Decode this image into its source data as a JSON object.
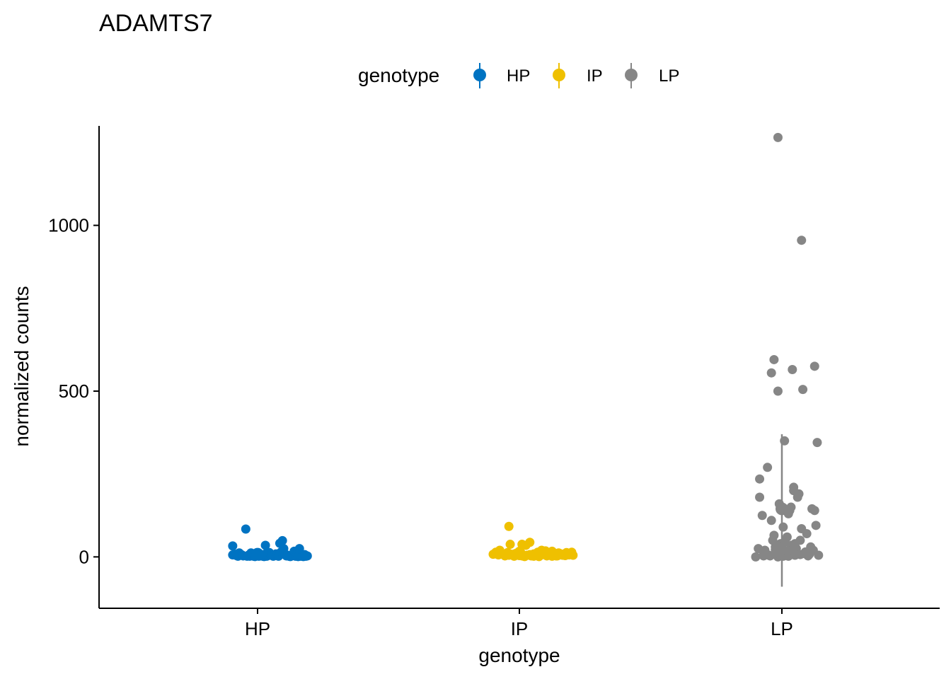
{
  "chart_data": {
    "type": "scatter",
    "title": "ADAMTS7",
    "xlabel": "genotype",
    "ylabel": "normalized counts",
    "categories": [
      "HP",
      "IP",
      "LP"
    ],
    "ylim": [
      -155,
      1300
    ],
    "yticks": [
      0,
      500,
      1000
    ],
    "grid": false,
    "legend": {
      "title": "genotype",
      "position": "top",
      "entries": [
        "HP",
        "IP",
        "LP"
      ]
    },
    "colors": {
      "HP": "#0073C2",
      "IP": "#EFC000",
      "LP": "#868686"
    },
    "series": [
      {
        "name": "HP",
        "summary": {
          "mean": 8,
          "lower": 0,
          "upper": 18
        },
        "points": [
          [
            -0.19,
            33
          ],
          [
            -0.19,
            6
          ],
          [
            -0.17,
            8
          ],
          [
            -0.16,
            4
          ],
          [
            -0.15,
            2
          ],
          [
            -0.14,
            12
          ],
          [
            -0.12,
            6
          ],
          [
            -0.11,
            3
          ],
          [
            -0.09,
            84
          ],
          [
            -0.08,
            2
          ],
          [
            -0.07,
            5
          ],
          [
            -0.06,
            2
          ],
          [
            -0.05,
            12
          ],
          [
            -0.04,
            6
          ],
          [
            -0.03,
            2
          ],
          [
            -0.02,
            1
          ],
          [
            0.0,
            7
          ],
          [
            0.01,
            2
          ],
          [
            0.02,
            3
          ],
          [
            0.03,
            4
          ],
          [
            0.04,
            2
          ],
          [
            0.05,
            1
          ],
          [
            0.06,
            9
          ],
          [
            0.06,
            35
          ],
          [
            0.07,
            2
          ],
          [
            0.08,
            4
          ],
          [
            0.09,
            13
          ],
          [
            0.1,
            8
          ],
          [
            0.11,
            4
          ],
          [
            0.12,
            2
          ],
          [
            0.13,
            6
          ],
          [
            0.14,
            9
          ],
          [
            0.15,
            7
          ],
          [
            0.16,
            2
          ],
          [
            0.17,
            41
          ],
          [
            0.18,
            15
          ],
          [
            0.19,
            49
          ],
          [
            0.2,
            25
          ],
          [
            0.21,
            8
          ],
          [
            0.22,
            3
          ],
          [
            0.23,
            5
          ],
          [
            0.24,
            2
          ],
          [
            0.25,
            1
          ],
          [
            0.26,
            3
          ],
          [
            0.27,
            4
          ],
          [
            0.28,
            17
          ],
          [
            0.29,
            2
          ],
          [
            0.3,
            9
          ],
          [
            0.31,
            1
          ],
          [
            0.32,
            25
          ],
          [
            0.33,
            2
          ],
          [
            0.34,
            3
          ],
          [
            0.35,
            1
          ],
          [
            0.36,
            7
          ],
          [
            0.37,
            2
          ],
          [
            0.38,
            3
          ]
        ]
      },
      {
        "name": "IP",
        "summary": {
          "mean": 10,
          "lower": 0,
          "upper": 20
        },
        "points": [
          [
            -0.2,
            8
          ],
          [
            -0.18,
            14
          ],
          [
            -0.16,
            6
          ],
          [
            -0.15,
            20
          ],
          [
            -0.13,
            9
          ],
          [
            -0.11,
            3
          ],
          [
            -0.09,
            13
          ],
          [
            -0.08,
            5
          ],
          [
            -0.06,
            8
          ],
          [
            -0.04,
            2
          ],
          [
            -0.03,
            10
          ],
          [
            -0.01,
            6
          ],
          [
            0.0,
            4
          ],
          [
            0.02,
            3
          ],
          [
            0.04,
            1
          ],
          [
            0.06,
            5
          ],
          [
            0.08,
            7
          ],
          [
            0.09,
            3
          ],
          [
            0.11,
            2
          ],
          [
            0.13,
            4
          ],
          [
            0.15,
            1
          ],
          [
            0.17,
            6
          ],
          [
            0.19,
            8
          ],
          [
            0.21,
            3
          ],
          [
            0.23,
            5
          ],
          [
            0.25,
            2
          ],
          [
            0.27,
            4
          ],
          [
            0.29,
            3
          ],
          [
            0.31,
            10
          ],
          [
            0.33,
            5
          ],
          [
            -0.08,
            92
          ],
          [
            -0.07,
            38
          ],
          [
            0.0,
            17
          ],
          [
            0.02,
            38
          ],
          [
            0.05,
            35
          ],
          [
            0.08,
            44
          ],
          [
            0.11,
            9
          ],
          [
            0.14,
            14
          ],
          [
            0.17,
            20
          ],
          [
            0.2,
            18
          ],
          [
            0.22,
            7
          ],
          [
            0.25,
            17
          ],
          [
            0.28,
            3
          ],
          [
            0.3,
            12
          ],
          [
            0.33,
            8
          ],
          [
            0.35,
            4
          ],
          [
            0.36,
            13
          ],
          [
            0.38,
            6
          ],
          [
            0.4,
            14
          ],
          [
            0.41,
            5
          ]
        ]
      },
      {
        "name": "LP",
        "summary": {
          "mean": 145,
          "lower": -90,
          "upper": 370
        },
        "points": [
          [
            -0.2,
            0
          ],
          [
            -0.18,
            25
          ],
          [
            -0.17,
            235
          ],
          [
            -0.17,
            180
          ],
          [
            -0.15,
            125
          ],
          [
            -0.14,
            3
          ],
          [
            -0.13,
            20
          ],
          [
            -0.12,
            10
          ],
          [
            -0.11,
            270
          ],
          [
            -0.1,
            5
          ],
          [
            -0.08,
            555
          ],
          [
            -0.08,
            110
          ],
          [
            -0.07,
            50
          ],
          [
            -0.06,
            65
          ],
          [
            -0.06,
            595
          ],
          [
            -0.05,
            30
          ],
          [
            -0.04,
            15
          ],
          [
            -0.03,
            0
          ],
          [
            -0.03,
            500
          ],
          [
            -0.02,
            160
          ],
          [
            -0.01,
            5
          ],
          [
            -0.01,
            40
          ],
          [
            0.0,
            20
          ],
          [
            0.0,
            30
          ],
          [
            0.01,
            90
          ],
          [
            0.01,
            2
          ],
          [
            0.02,
            350
          ],
          [
            0.02,
            45
          ],
          [
            0.03,
            10
          ],
          [
            0.03,
            5
          ],
          [
            -0.03,
            1265
          ],
          [
            0.04,
            60
          ],
          [
            0.05,
            130
          ],
          [
            0.06,
            140
          ],
          [
            0.07,
            35
          ],
          [
            0.07,
            150
          ],
          [
            0.08,
            8
          ],
          [
            0.08,
            565
          ],
          [
            0.09,
            200
          ],
          [
            0.09,
            210
          ],
          [
            0.1,
            40
          ],
          [
            0.11,
            25
          ],
          [
            0.12,
            180
          ],
          [
            0.13,
            190
          ],
          [
            0.14,
            50
          ],
          [
            0.15,
            955
          ],
          [
            0.15,
            85
          ],
          [
            0.16,
            505
          ],
          [
            0.17,
            10
          ],
          [
            0.18,
            15
          ],
          [
            0.19,
            70
          ],
          [
            0.2,
            3
          ],
          [
            0.21,
            8
          ],
          [
            0.22,
            30
          ],
          [
            0.23,
            145
          ],
          [
            0.24,
            20
          ],
          [
            0.25,
            575
          ],
          [
            0.25,
            140
          ],
          [
            0.26,
            95
          ],
          [
            0.27,
            345
          ],
          [
            0.28,
            5
          ],
          [
            0.05,
            2
          ],
          [
            0.1,
            5
          ],
          [
            0.14,
            7
          ],
          [
            -0.09,
            3
          ],
          [
            -0.14,
            8
          ],
          [
            0.2,
            12
          ],
          [
            0.04,
            18
          ],
          [
            -0.05,
            22
          ],
          [
            0.09,
            28
          ]
        ]
      }
    ]
  }
}
